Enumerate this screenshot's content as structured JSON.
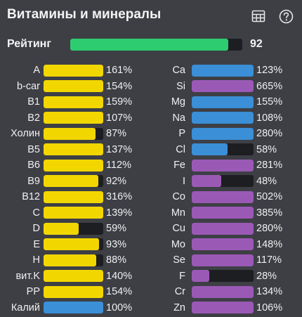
{
  "title": "Витамины и минералы",
  "icons": [
    "table-icon",
    "help-icon"
  ],
  "rating": {
    "label": "Рейтинг",
    "value": "92",
    "fraction": 0.92,
    "color": "#2ecc71"
  },
  "colors": {
    "vitamin": "#f2d600",
    "mineral_macro": "#3a8fd6",
    "mineral_micro": "#9b59b6",
    "track": "#1d1e22",
    "background": "#3d3f45"
  },
  "vitamins": [
    {
      "label": "A",
      "value": "161%",
      "fraction": 1.0,
      "color": "#f2d600"
    },
    {
      "label": "b-car",
      "value": "154%",
      "fraction": 1.0,
      "color": "#f2d600"
    },
    {
      "label": "B1",
      "value": "159%",
      "fraction": 1.0,
      "color": "#f2d600"
    },
    {
      "label": "B2",
      "value": "107%",
      "fraction": 1.0,
      "color": "#f2d600"
    },
    {
      "label": "Холин",
      "value": "87%",
      "fraction": 0.87,
      "color": "#f2d600"
    },
    {
      "label": "B5",
      "value": "137%",
      "fraction": 1.0,
      "color": "#f2d600"
    },
    {
      "label": "B6",
      "value": "112%",
      "fraction": 1.0,
      "color": "#f2d600"
    },
    {
      "label": "B9",
      "value": "92%",
      "fraction": 0.92,
      "color": "#f2d600"
    },
    {
      "label": "B12",
      "value": "316%",
      "fraction": 1.0,
      "color": "#f2d600"
    },
    {
      "label": "C",
      "value": "139%",
      "fraction": 1.0,
      "color": "#f2d600"
    },
    {
      "label": "D",
      "value": "59%",
      "fraction": 0.59,
      "color": "#f2d600"
    },
    {
      "label": "E",
      "value": "93%",
      "fraction": 0.93,
      "color": "#f2d600"
    },
    {
      "label": "H",
      "value": "88%",
      "fraction": 0.88,
      "color": "#f2d600"
    },
    {
      "label": "вит.K",
      "value": "140%",
      "fraction": 1.0,
      "color": "#f2d600"
    },
    {
      "label": "PP",
      "value": "154%",
      "fraction": 1.0,
      "color": "#f2d600"
    },
    {
      "label": "Калий",
      "value": "100%",
      "fraction": 1.0,
      "color": "#3a8fd6"
    }
  ],
  "minerals": [
    {
      "label": "Ca",
      "value": "123%",
      "fraction": 1.0,
      "color": "#3a8fd6"
    },
    {
      "label": "Si",
      "value": "665%",
      "fraction": 1.0,
      "color": "#9b59b6"
    },
    {
      "label": "Mg",
      "value": "155%",
      "fraction": 1.0,
      "color": "#3a8fd6"
    },
    {
      "label": "Na",
      "value": "108%",
      "fraction": 1.0,
      "color": "#3a8fd6"
    },
    {
      "label": "P",
      "value": "280%",
      "fraction": 1.0,
      "color": "#3a8fd6"
    },
    {
      "label": "Cl",
      "value": "58%",
      "fraction": 0.58,
      "color": "#3a8fd6"
    },
    {
      "label": "Fe",
      "value": "281%",
      "fraction": 1.0,
      "color": "#9b59b6"
    },
    {
      "label": "I",
      "value": "48%",
      "fraction": 0.48,
      "color": "#9b59b6"
    },
    {
      "label": "Co",
      "value": "502%",
      "fraction": 1.0,
      "color": "#9b59b6"
    },
    {
      "label": "Mn",
      "value": "385%",
      "fraction": 1.0,
      "color": "#9b59b6"
    },
    {
      "label": "Cu",
      "value": "280%",
      "fraction": 1.0,
      "color": "#9b59b6"
    },
    {
      "label": "Mo",
      "value": "148%",
      "fraction": 1.0,
      "color": "#9b59b6"
    },
    {
      "label": "Se",
      "value": "117%",
      "fraction": 1.0,
      "color": "#9b59b6"
    },
    {
      "label": "F",
      "value": "28%",
      "fraction": 0.28,
      "color": "#9b59b6"
    },
    {
      "label": "Cr",
      "value": "134%",
      "fraction": 1.0,
      "color": "#9b59b6"
    },
    {
      "label": "Zn",
      "value": "106%",
      "fraction": 1.0,
      "color": "#9b59b6"
    }
  ]
}
